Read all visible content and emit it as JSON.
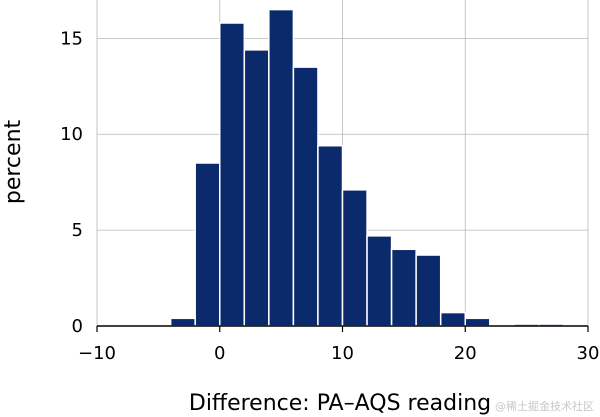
{
  "chart_data": {
    "type": "bar",
    "histogram": true,
    "xlabel": "Difference: PA–AQS reading",
    "ylabel": "percent",
    "xlim": [
      -10,
      30
    ],
    "ylim": [
      0,
      17
    ],
    "bin_width": 2,
    "bins": [
      {
        "x0": -4,
        "x1": -2,
        "value": 0.4
      },
      {
        "x0": -2,
        "x1": 0,
        "value": 8.5
      },
      {
        "x0": 0,
        "x1": 2,
        "value": 15.8
      },
      {
        "x0": 2,
        "x1": 4,
        "value": 14.4
      },
      {
        "x0": 4,
        "x1": 6,
        "value": 16.5
      },
      {
        "x0": 6,
        "x1": 8,
        "value": 13.5
      },
      {
        "x0": 8,
        "x1": 10,
        "value": 9.4
      },
      {
        "x0": 10,
        "x1": 12,
        "value": 7.1
      },
      {
        "x0": 12,
        "x1": 14,
        "value": 4.7
      },
      {
        "x0": 14,
        "x1": 16,
        "value": 4.0
      },
      {
        "x0": 16,
        "x1": 18,
        "value": 3.7
      },
      {
        "x0": 18,
        "x1": 20,
        "value": 0.7
      },
      {
        "x0": 20,
        "x1": 22,
        "value": 0.4
      },
      {
        "x0": 24,
        "x1": 26,
        "value": 0.1
      },
      {
        "x0": 26,
        "x1": 28,
        "value": 0.1
      }
    ],
    "x_ticks": [
      {
        "value": -10,
        "label": "−10"
      },
      {
        "value": 0,
        "label": "0"
      },
      {
        "value": 10,
        "label": "10"
      },
      {
        "value": 20,
        "label": "20"
      },
      {
        "value": 30,
        "label": "30"
      }
    ],
    "y_ticks": [
      {
        "value": 0,
        "label": "0"
      },
      {
        "value": 5,
        "label": "5"
      },
      {
        "value": 10,
        "label": "10"
      },
      {
        "value": 15,
        "label": "15"
      }
    ],
    "grid": true,
    "bar_color": "#0b2a6b",
    "bar_edge_color": "#ffffff",
    "grid_color": "#b8b8b8"
  },
  "watermark": "@稀土掘金技术社区"
}
